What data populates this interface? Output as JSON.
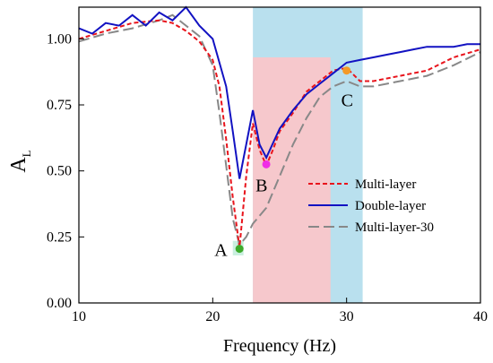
{
  "chart_data": {
    "type": "line",
    "xlabel": "Frequency (Hz)",
    "ylabel_main": "A",
    "ylabel_sub": "L",
    "xlim": [
      10,
      40
    ],
    "ylim": [
      0,
      1.12
    ],
    "xticks": [
      10,
      20,
      30,
      40
    ],
    "xtick_labels": [
      "10",
      "20",
      "30",
      "40"
    ],
    "yticks": [
      0,
      0.25,
      0.5,
      0.75,
      1.0
    ],
    "ytick_labels": [
      "0.00",
      "0.25",
      "0.50",
      "0.75",
      "1.00"
    ],
    "grid": false,
    "legend_position": "center-right",
    "regions": [
      {
        "name": "blue-band",
        "x0": 23,
        "x1": 31.2,
        "y0": 0,
        "y1": 1.12,
        "color": "#b9e0ee"
      },
      {
        "name": "red-band",
        "x0": 23,
        "x1": 28.8,
        "y0": 0,
        "y1": 0.93,
        "color": "#f6c8cc"
      },
      {
        "name": "green-band",
        "x0": 21.5,
        "x1": 22.3,
        "y0": 0.18,
        "y1": 0.235,
        "color": "#c9efdf"
      }
    ],
    "series": [
      {
        "name": "Multi-layer",
        "color": "#e8141c",
        "dash": "5,3",
        "width": 2,
        "x": [
          10,
          12,
          14,
          16,
          17,
          18,
          19,
          20,
          20.5,
          21,
          21.5,
          22,
          22.5,
          23,
          23.5,
          24,
          24.5,
          25,
          26,
          27,
          28,
          29,
          30,
          31,
          32,
          34,
          36,
          38,
          40
        ],
        "y": [
          1.0,
          1.03,
          1.06,
          1.07,
          1.06,
          1.03,
          0.99,
          0.92,
          0.82,
          0.62,
          0.4,
          0.21,
          0.48,
          0.68,
          0.58,
          0.52,
          0.58,
          0.65,
          0.72,
          0.8,
          0.84,
          0.88,
          0.89,
          0.84,
          0.84,
          0.86,
          0.88,
          0.93,
          0.96
        ]
      },
      {
        "name": "Double-layer",
        "color": "#1212c2",
        "dash": "",
        "width": 2,
        "x": [
          10,
          11,
          12,
          13,
          14,
          15,
          16,
          17,
          18,
          19,
          20,
          21,
          21.5,
          22,
          22.5,
          23,
          23.5,
          24,
          25,
          26,
          27,
          28,
          29,
          30,
          31,
          32,
          33,
          34,
          35,
          36,
          37,
          38,
          39,
          40
        ],
        "y": [
          1.04,
          1.02,
          1.06,
          1.05,
          1.09,
          1.05,
          1.1,
          1.07,
          1.12,
          1.05,
          1.0,
          0.82,
          0.65,
          0.47,
          0.6,
          0.73,
          0.6,
          0.55,
          0.66,
          0.73,
          0.79,
          0.83,
          0.87,
          0.91,
          0.92,
          0.93,
          0.94,
          0.95,
          0.96,
          0.97,
          0.97,
          0.97,
          0.98,
          0.98
        ]
      },
      {
        "name": "Multi-layer-30",
        "color": "#888888",
        "dash": "12,5",
        "width": 2,
        "x": [
          10,
          12,
          14,
          16,
          17,
          18,
          19,
          20,
          20.5,
          21,
          21.5,
          22,
          22.5,
          23,
          23.5,
          24,
          25,
          26,
          27,
          28,
          29,
          30,
          31,
          32,
          34,
          36,
          38,
          40
        ],
        "y": [
          0.99,
          1.02,
          1.04,
          1.07,
          1.09,
          1.05,
          1.01,
          0.9,
          0.72,
          0.52,
          0.32,
          0.22,
          0.25,
          0.3,
          0.33,
          0.36,
          0.48,
          0.6,
          0.7,
          0.78,
          0.82,
          0.84,
          0.82,
          0.82,
          0.84,
          0.86,
          0.9,
          0.95
        ]
      }
    ],
    "points": [
      {
        "label": "A",
        "x": 22,
        "y": 0.205,
        "color": "#3daa2a",
        "label_dx": -28,
        "label_dy": 8
      },
      {
        "label": "B",
        "x": 24,
        "y": 0.525,
        "color": "#f02ee6",
        "label_dx": -12,
        "label_dy": 30
      },
      {
        "label": "C",
        "x": 30,
        "y": 0.88,
        "color": "#f39a27",
        "label_dx": -6,
        "label_dy": 40
      }
    ]
  }
}
